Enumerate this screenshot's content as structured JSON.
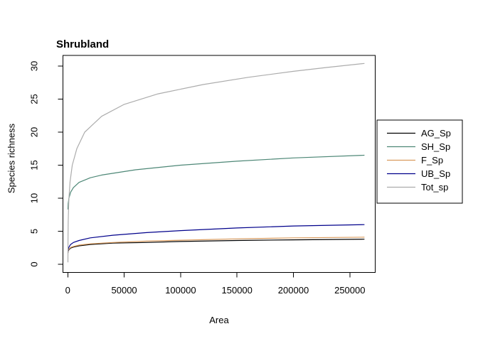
{
  "chart_data": {
    "type": "line",
    "title": "Shrubland",
    "xlabel": "Area",
    "ylabel": "Species richness",
    "xlim": [
      0,
      263000
    ],
    "ylim": [
      0,
      30.4
    ],
    "grid": false,
    "legend_position": "outside-right",
    "x_ticks": [
      0,
      50000,
      100000,
      150000,
      200000,
      250000
    ],
    "x_tick_labels": [
      "0",
      "50000",
      "100000",
      "150000",
      "200000",
      "250000"
    ],
    "y_ticks": [
      0,
      5,
      10,
      15,
      20,
      25,
      30
    ],
    "y_tick_labels": [
      "0",
      "5",
      "10",
      "15",
      "20",
      "25",
      "30"
    ],
    "series": [
      {
        "name": "AG_Sp",
        "color": "#000000",
        "points": [
          [
            130,
            1.7
          ],
          [
            400,
            2.0
          ],
          [
            1000,
            2.2
          ],
          [
            2500,
            2.45
          ],
          [
            5000,
            2.6
          ],
          [
            10000,
            2.8
          ],
          [
            20000,
            3.0
          ],
          [
            40000,
            3.2
          ],
          [
            70000,
            3.3
          ],
          [
            100000,
            3.45
          ],
          [
            150000,
            3.6
          ],
          [
            200000,
            3.7
          ],
          [
            263000,
            3.8
          ]
        ]
      },
      {
        "name": "SH_Sp",
        "color": "#4D8776",
        "points": [
          [
            130,
            8.3
          ],
          [
            400,
            9.2
          ],
          [
            1000,
            10.0
          ],
          [
            2500,
            10.9
          ],
          [
            5000,
            11.6
          ],
          [
            10000,
            12.4
          ],
          [
            20000,
            13.1
          ],
          [
            30000,
            13.5
          ],
          [
            60000,
            14.3
          ],
          [
            100000,
            15.0
          ],
          [
            150000,
            15.6
          ],
          [
            200000,
            16.1
          ],
          [
            263000,
            16.5
          ]
        ]
      },
      {
        "name": "F_Sp",
        "color": "#D99B5E",
        "points": [
          [
            130,
            1.8
          ],
          [
            400,
            2.1
          ],
          [
            1000,
            2.3
          ],
          [
            2500,
            2.55
          ],
          [
            5000,
            2.7
          ],
          [
            10000,
            2.9
          ],
          [
            20000,
            3.1
          ],
          [
            40000,
            3.3
          ],
          [
            70000,
            3.5
          ],
          [
            100000,
            3.65
          ],
          [
            150000,
            3.85
          ],
          [
            200000,
            4.0
          ],
          [
            263000,
            4.1
          ]
        ]
      },
      {
        "name": "UB_Sp",
        "color": "#00008B",
        "points": [
          [
            130,
            1.9
          ],
          [
            400,
            2.3
          ],
          [
            1000,
            2.6
          ],
          [
            2500,
            3.0
          ],
          [
            5000,
            3.3
          ],
          [
            10000,
            3.6
          ],
          [
            20000,
            4.0
          ],
          [
            40000,
            4.4
          ],
          [
            70000,
            4.8
          ],
          [
            100000,
            5.1
          ],
          [
            150000,
            5.5
          ],
          [
            200000,
            5.8
          ],
          [
            263000,
            6.0
          ]
        ]
      },
      {
        "name": "Tot_sp",
        "color": "#ACACAC",
        "points": [
          [
            130,
            0.3
          ],
          [
            200,
            3.5
          ],
          [
            400,
            6.5
          ],
          [
            700,
            8.5
          ],
          [
            1000,
            10.0
          ],
          [
            2000,
            12.5
          ],
          [
            4000,
            15.0
          ],
          [
            8000,
            17.5
          ],
          [
            15000,
            20.0
          ],
          [
            30000,
            22.4
          ],
          [
            50000,
            24.2
          ],
          [
            80000,
            25.8
          ],
          [
            120000,
            27.2
          ],
          [
            160000,
            28.3
          ],
          [
            200000,
            29.2
          ],
          [
            230000,
            29.8
          ],
          [
            263000,
            30.4
          ]
        ]
      }
    ]
  }
}
